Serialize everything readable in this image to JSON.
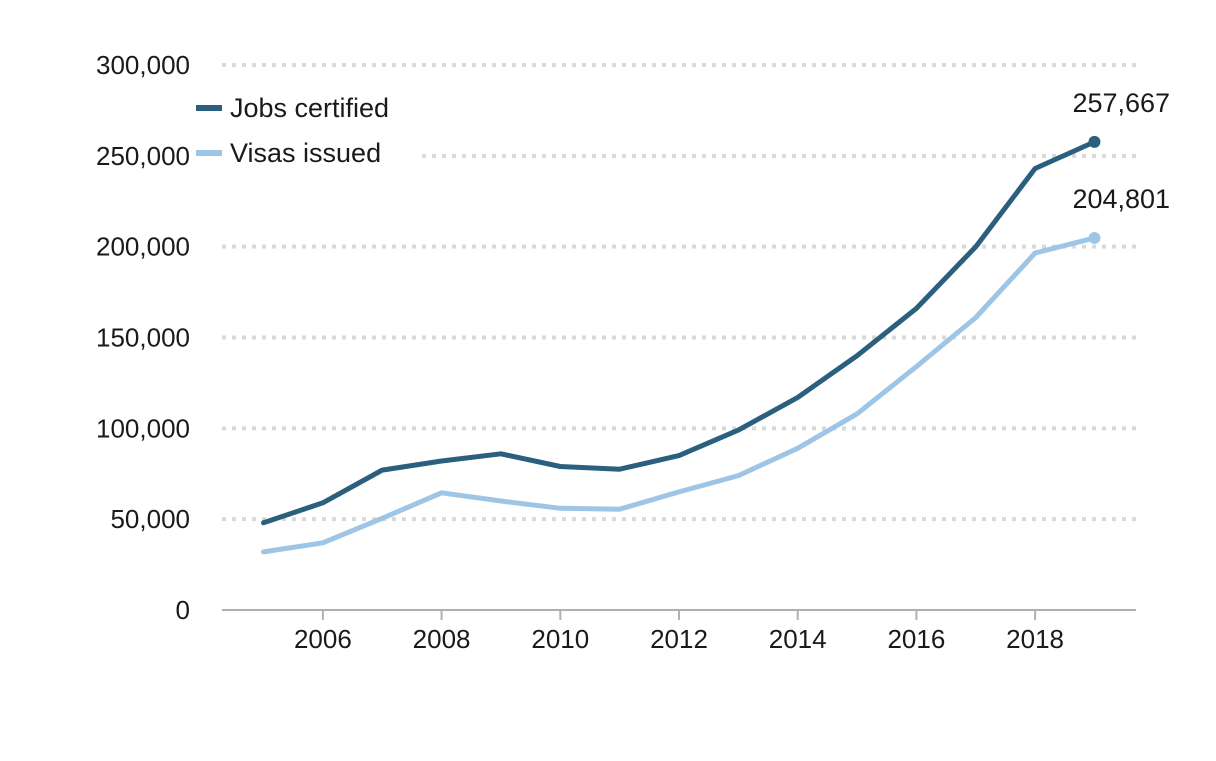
{
  "chart_data": {
    "type": "line",
    "title": "",
    "xlabel": "",
    "ylabel": "",
    "xlim": [
      2004.3,
      2019.7
    ],
    "ylim": [
      0,
      300000
    ],
    "x_ticks": [
      2006,
      2008,
      2010,
      2012,
      2014,
      2016,
      2018
    ],
    "x_tick_labels": [
      "2006",
      "2008",
      "2010",
      "2012",
      "2014",
      "2016",
      "2018"
    ],
    "y_ticks": [
      0,
      50000,
      100000,
      150000,
      200000,
      250000,
      300000
    ],
    "y_tick_labels": [
      "0",
      "50,000",
      "100,000",
      "150,000",
      "200,000",
      "250,000",
      "300,000"
    ],
    "grid": "horizontal dotted",
    "legend_position": "top-left",
    "x": [
      2005,
      2006,
      2007,
      2008,
      2009,
      2010,
      2011,
      2012,
      2013,
      2014,
      2015,
      2016,
      2017,
      2018,
      2019
    ],
    "series": [
      {
        "name": "Jobs certified",
        "color": "#2a5f7e",
        "values": [
          48000,
          59000,
          77000,
          82000,
          86000,
          79000,
          77500,
          85000,
          99000,
          117000,
          140000,
          166000,
          200000,
          243000,
          257667
        ],
        "end_label": "257,667"
      },
      {
        "name": "Visas issued",
        "color": "#9fc5e6",
        "values": [
          32000,
          37000,
          50500,
          64500,
          60000,
          56000,
          55500,
          65000,
          74000,
          89000,
          108000,
          134000,
          161000,
          196500,
          204801
        ],
        "end_label": "204,801"
      }
    ]
  }
}
